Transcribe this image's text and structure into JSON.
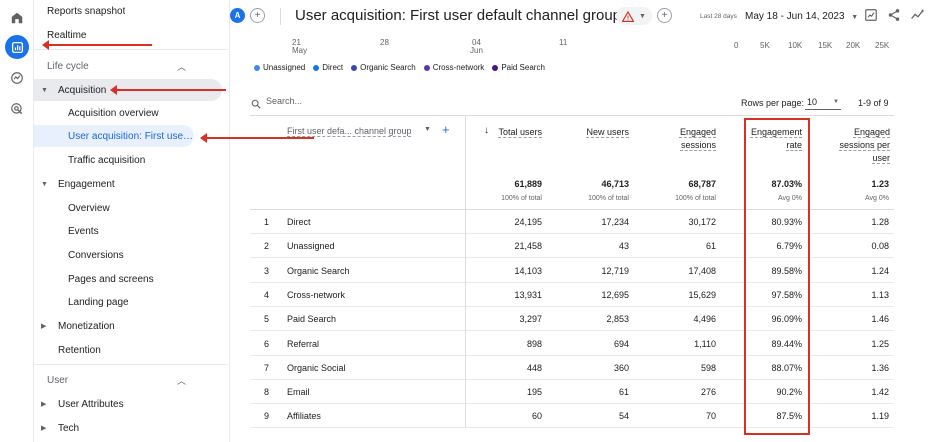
{
  "rail": {
    "icons": [
      "home-icon",
      "reports-icon",
      "explore-icon",
      "advertising-icon"
    ]
  },
  "sidebar": {
    "reports_snapshot": "Reports snapshot",
    "realtime": "Realtime",
    "lifecycle_section": "Life cycle",
    "acquisition": "Acquisition",
    "acquisition_overview": "Acquisition overview",
    "user_acquisition": "User acquisition: First user ...",
    "traffic_acquisition": "Traffic acquisition",
    "engagement": "Engagement",
    "overview": "Overview",
    "events": "Events",
    "conversions": "Conversions",
    "pages_and_screens": "Pages and screens",
    "landing_page": "Landing page",
    "monetization": "Monetization",
    "retention": "Retention",
    "user_section": "User",
    "user_attributes": "User Attributes",
    "tech": "Tech"
  },
  "header": {
    "avatar_letter": "A",
    "title": "User acquisition: First user default channel group",
    "date_range_label": "Last 28 days",
    "date_range": "May 18 - Jun 14, 2023"
  },
  "axis": {
    "ticks_left": [
      "21",
      "28",
      "04",
      "11"
    ],
    "tick_sub": [
      "May",
      "",
      "Jun",
      ""
    ],
    "ticks_right": [
      "0",
      "5K",
      "10K",
      "15K",
      "20K",
      "25K"
    ]
  },
  "legend": [
    {
      "name": "Unassigned",
      "color": "#4285f4"
    },
    {
      "name": "Direct",
      "color": "#1a73e8"
    },
    {
      "name": "Organic Search",
      "color": "#3949ab"
    },
    {
      "name": "Cross-network",
      "color": "#5e35b1"
    },
    {
      "name": "Paid Search",
      "color": "#4a148c"
    }
  ],
  "table": {
    "search_placeholder": "Search...",
    "rows_per_page_label": "Rows per page:",
    "rows_per_page": "10",
    "pagination": "1-9 of 9",
    "dimension_header": "First user defa... channel group",
    "columns": [
      {
        "header": "Total users",
        "total": "61,889",
        "sub": "100% of total"
      },
      {
        "header": "New users",
        "total": "46,713",
        "sub": "100% of total"
      },
      {
        "header": "Engaged sessions",
        "total": "68,787",
        "sub": "100% of total"
      },
      {
        "header": "Engagement rate",
        "total": "87.03%",
        "sub": "Avg 0%"
      },
      {
        "header": "Engaged sessions per user",
        "total": "1.23",
        "sub": "Avg 0%"
      }
    ],
    "rows": [
      {
        "rank": "1",
        "channel": "Direct",
        "total_users": "24,195",
        "new_users": "17,234",
        "engaged_sessions": "30,172",
        "engagement_rate": "80.93%",
        "sessions_per_user": "1.28"
      },
      {
        "rank": "2",
        "channel": "Unassigned",
        "total_users": "21,458",
        "new_users": "43",
        "engaged_sessions": "61",
        "engagement_rate": "6.79%",
        "sessions_per_user": "0.08"
      },
      {
        "rank": "3",
        "channel": "Organic Search",
        "total_users": "14,103",
        "new_users": "12,719",
        "engaged_sessions": "17,408",
        "engagement_rate": "89.58%",
        "sessions_per_user": "1.24"
      },
      {
        "rank": "4",
        "channel": "Cross-network",
        "total_users": "13,931",
        "new_users": "12,695",
        "engaged_sessions": "15,629",
        "engagement_rate": "97.58%",
        "sessions_per_user": "1.13"
      },
      {
        "rank": "5",
        "channel": "Paid Search",
        "total_users": "3,297",
        "new_users": "2,853",
        "engaged_sessions": "4,496",
        "engagement_rate": "96.09%",
        "sessions_per_user": "1.46"
      },
      {
        "rank": "6",
        "channel": "Referral",
        "total_users": "898",
        "new_users": "694",
        "engaged_sessions": "1,110",
        "engagement_rate": "89.44%",
        "sessions_per_user": "1.25"
      },
      {
        "rank": "7",
        "channel": "Organic Social",
        "total_users": "448",
        "new_users": "360",
        "engaged_sessions": "598",
        "engagement_rate": "88.07%",
        "sessions_per_user": "1.36"
      },
      {
        "rank": "8",
        "channel": "Email",
        "total_users": "195",
        "new_users": "61",
        "engaged_sessions": "276",
        "engagement_rate": "90.2%",
        "sessions_per_user": "1.42"
      },
      {
        "rank": "9",
        "channel": "Affiliates",
        "total_users": "60",
        "new_users": "54",
        "engaged_sessions": "70",
        "engagement_rate": "87.5%",
        "sessions_per_user": "1.19"
      }
    ]
  },
  "colors": {
    "accent": "#1a73e8",
    "annotation": "#d93025",
    "selected_bg": "#e8f0fe"
  }
}
